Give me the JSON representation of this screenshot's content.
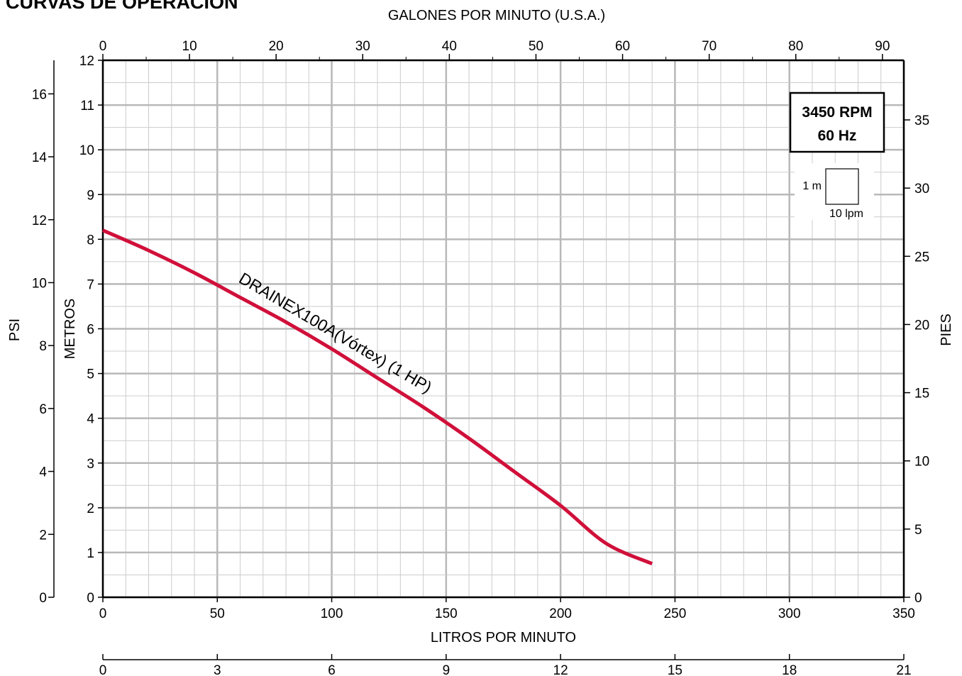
{
  "page": {
    "title": "CURVAS DE OPERACION"
  },
  "chart_data": {
    "type": "line",
    "title": "CURVAS DE OPERACION",
    "x_top_label": "GALONES POR MINUTO (U.S.A.)",
    "x_bottom_label": "LITROS POR MINUTO",
    "y_left_outer_label": "PSI",
    "y_left_label": "METROS",
    "y_right_label": "PIES",
    "xlim": [
      0,
      350
    ],
    "ylim": [
      0,
      12
    ],
    "x_ticks": [
      "0",
      "50",
      "100",
      "150",
      "200",
      "250",
      "300",
      "350"
    ],
    "x_top_ticks": [
      "0",
      "10",
      "20",
      "30",
      "40",
      "50",
      "60",
      "70",
      "80",
      "90"
    ],
    "x_bottom2_ticks": [
      "0",
      "3",
      "6",
      "9",
      "12",
      "15",
      "18",
      "21"
    ],
    "y_ticks": [
      "0",
      "1",
      "2",
      "3",
      "4",
      "5",
      "6",
      "7",
      "8",
      "9",
      "10",
      "11",
      "12"
    ],
    "psi_ticks": [
      "0",
      "2",
      "4",
      "6",
      "8",
      "10",
      "12",
      "14",
      "16"
    ],
    "feet_ticks": [
      "0",
      "5",
      "10",
      "15",
      "20",
      "25",
      "30",
      "35"
    ],
    "grid": true,
    "series": [
      {
        "name": "DRAINEX100A(Vórtex) (1 HP)",
        "color": "#d0103a",
        "x": [
          0,
          20,
          40,
          60,
          80,
          100,
          120,
          140,
          160,
          180,
          200,
          220,
          240
        ],
        "y": [
          8.2,
          7.75,
          7.25,
          6.7,
          6.15,
          5.55,
          4.9,
          4.25,
          3.55,
          2.8,
          2.05,
          1.2,
          0.75
        ]
      }
    ],
    "annotations": {
      "rpm_box_line1": "3450 RPM",
      "rpm_box_line2": "60 Hz",
      "scale_v": "1 m",
      "scale_h": "10 lpm"
    }
  }
}
